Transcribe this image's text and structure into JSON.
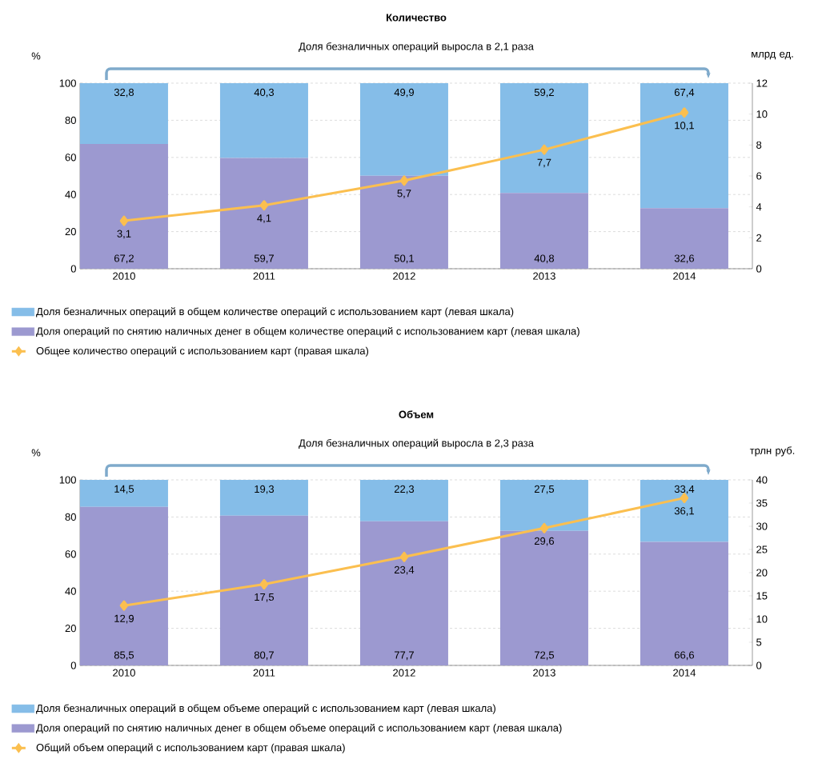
{
  "chart_data": [
    {
      "type": "bar",
      "stacked": true,
      "title": "Количество",
      "annotations": [
        "Доля безналичных операций выросла в 2,1 раза"
      ],
      "ylabel": "%",
      "y2label": "млрд ед.",
      "categories": [
        "2010",
        "2011",
        "2012",
        "2013",
        "2014"
      ],
      "ylim": [
        0,
        100
      ],
      "yticks": [
        0,
        20,
        40,
        60,
        80,
        100
      ],
      "y2lim": [
        0,
        12
      ],
      "y2ticks": [
        0,
        2,
        4,
        6,
        8,
        10,
        12
      ],
      "grid": "y",
      "legend": "bottom",
      "marker": "diamond",
      "series": [
        {
          "name": "Доля операций по снятию наличных денег в общем количестве операций с использованием карт (левая шкала)",
          "color": "#9c99d0",
          "values": [
            67.2,
            59.7,
            50.1,
            40.8,
            32.6
          ],
          "value_labels": [
            "67,2",
            "59,7",
            "50,1",
            "40,8",
            "32,6"
          ]
        },
        {
          "name": "Доля безналичных операций в общем количестве операций с использованием карт (левая шкала)",
          "color": "#85bde8",
          "values": [
            32.8,
            40.3,
            49.9,
            59.2,
            67.4
          ],
          "value_labels": [
            "32,8",
            "40,3",
            "49,9",
            "59,2",
            "67,4"
          ]
        },
        {
          "name": "Общее количество операций с использованием карт (правая шкала)",
          "type": "line",
          "axis": "y2",
          "color": "#fbbf4f",
          "values": [
            3.1,
            4.1,
            5.7,
            7.7,
            10.1
          ],
          "value_labels": [
            "3,1",
            "4,1",
            "5,7",
            "7,7",
            "10,1"
          ]
        }
      ]
    },
    {
      "type": "bar",
      "stacked": true,
      "title": "Объем",
      "annotations": [
        "Доля безналичных операций выросла в 2,3 раза"
      ],
      "ylabel": "%",
      "y2label": "трлн руб.",
      "categories": [
        "2010",
        "2011",
        "2012",
        "2013",
        "2014"
      ],
      "ylim": [
        0,
        100
      ],
      "yticks": [
        0,
        20,
        40,
        60,
        80,
        100
      ],
      "y2lim": [
        0,
        40
      ],
      "y2ticks": [
        0,
        5,
        10,
        15,
        20,
        25,
        30,
        35,
        40
      ],
      "grid": "y",
      "legend": "bottom",
      "marker": "diamond",
      "series": [
        {
          "name": "Доля операций по снятию наличных денег в общем объеме операций с использованием карт (левая шкала)",
          "color": "#9c99d0",
          "values": [
            85.5,
            80.7,
            77.7,
            72.5,
            66.6
          ],
          "value_labels": [
            "85,5",
            "80,7",
            "77,7",
            "72,5",
            "66,6"
          ]
        },
        {
          "name": "Доля безналичных операций в общем объеме операций с использованием карт (левая шкала)",
          "color": "#85bde8",
          "values": [
            14.5,
            19.3,
            22.3,
            27.5,
            33.4
          ],
          "value_labels": [
            "14,5",
            "19,3",
            "22,3",
            "27,5",
            "33,4"
          ]
        },
        {
          "name": "Общий объем операций с использованием карт (правая шкала)",
          "type": "line",
          "axis": "y2",
          "color": "#fbbf4f",
          "values": [
            12.9,
            17.5,
            23.4,
            29.6,
            36.1
          ],
          "value_labels": [
            "12,9",
            "17,5",
            "23,4",
            "29,6",
            "36,1"
          ]
        }
      ]
    }
  ]
}
